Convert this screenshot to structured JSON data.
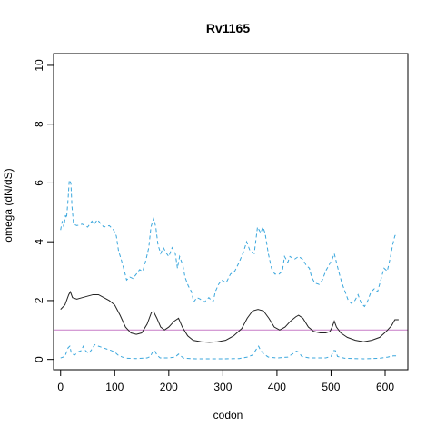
{
  "chart_data": {
    "type": "line",
    "title": "Rv1165",
    "xlabel": "codon",
    "ylabel": "omega (dN/dS)",
    "xlim": [
      -13,
      642
    ],
    "ylim": [
      -0.35,
      10.4
    ],
    "xticks": [
      0,
      100,
      200,
      300,
      400,
      500,
      600
    ],
    "yticks": [
      0,
      2,
      4,
      6,
      8,
      10
    ],
    "grid": false,
    "reference_line": {
      "y": 1,
      "color": "#c77cc7"
    },
    "series": [
      {
        "role": "mean",
        "style": "solid",
        "color": "#222222",
        "points": [
          [
            0,
            1.7
          ],
          [
            8,
            1.85
          ],
          [
            15,
            2.2
          ],
          [
            18,
            2.3
          ],
          [
            22,
            2.1
          ],
          [
            30,
            2.05
          ],
          [
            40,
            2.1
          ],
          [
            50,
            2.15
          ],
          [
            60,
            2.2
          ],
          [
            70,
            2.2
          ],
          [
            80,
            2.1
          ],
          [
            90,
            2.0
          ],
          [
            100,
            1.85
          ],
          [
            110,
            1.5
          ],
          [
            120,
            1.1
          ],
          [
            130,
            0.9
          ],
          [
            140,
            0.85
          ],
          [
            150,
            0.9
          ],
          [
            160,
            1.2
          ],
          [
            168,
            1.6
          ],
          [
            172,
            1.62
          ],
          [
            178,
            1.4
          ],
          [
            185,
            1.1
          ],
          [
            192,
            1.0
          ],
          [
            200,
            1.1
          ],
          [
            210,
            1.3
          ],
          [
            218,
            1.4
          ],
          [
            225,
            1.1
          ],
          [
            235,
            0.8
          ],
          [
            245,
            0.65
          ],
          [
            260,
            0.6
          ],
          [
            275,
            0.58
          ],
          [
            290,
            0.6
          ],
          [
            305,
            0.65
          ],
          [
            320,
            0.8
          ],
          [
            335,
            1.05
          ],
          [
            345,
            1.4
          ],
          [
            355,
            1.65
          ],
          [
            365,
            1.7
          ],
          [
            375,
            1.65
          ],
          [
            385,
            1.4
          ],
          [
            395,
            1.1
          ],
          [
            405,
            1.0
          ],
          [
            415,
            1.1
          ],
          [
            425,
            1.3
          ],
          [
            435,
            1.45
          ],
          [
            440,
            1.5
          ],
          [
            448,
            1.4
          ],
          [
            458,
            1.1
          ],
          [
            468,
            0.95
          ],
          [
            480,
            0.9
          ],
          [
            490,
            0.9
          ],
          [
            498,
            0.95
          ],
          [
            502,
            1.1
          ],
          [
            506,
            1.3
          ],
          [
            510,
            1.1
          ],
          [
            518,
            0.9
          ],
          [
            530,
            0.75
          ],
          [
            545,
            0.65
          ],
          [
            560,
            0.6
          ],
          [
            575,
            0.65
          ],
          [
            590,
            0.75
          ],
          [
            602,
            0.95
          ],
          [
            612,
            1.15
          ],
          [
            618,
            1.35
          ],
          [
            625,
            1.35
          ]
        ]
      },
      {
        "role": "upper",
        "style": "dashed",
        "color": "#3ba7dd",
        "points": [
          [
            0,
            4.4
          ],
          [
            3,
            4.7
          ],
          [
            6,
            4.5
          ],
          [
            9,
            4.9
          ],
          [
            11,
            4.8
          ],
          [
            14,
            5.5
          ],
          [
            16,
            6.1
          ],
          [
            19,
            6.0
          ],
          [
            21,
            5.2
          ],
          [
            24,
            4.6
          ],
          [
            30,
            4.55
          ],
          [
            40,
            4.6
          ],
          [
            50,
            4.5
          ],
          [
            58,
            4.7
          ],
          [
            62,
            4.6
          ],
          [
            68,
            4.75
          ],
          [
            75,
            4.6
          ],
          [
            80,
            4.5
          ],
          [
            90,
            4.55
          ],
          [
            98,
            4.4
          ],
          [
            103,
            4.2
          ],
          [
            107,
            3.7
          ],
          [
            112,
            3.4
          ],
          [
            118,
            3.0
          ],
          [
            122,
            2.7
          ],
          [
            128,
            2.8
          ],
          [
            134,
            2.75
          ],
          [
            140,
            2.9
          ],
          [
            146,
            3.05
          ],
          [
            152,
            3.0
          ],
          [
            158,
            3.4
          ],
          [
            163,
            3.8
          ],
          [
            167,
            4.5
          ],
          [
            172,
            4.8
          ],
          [
            176,
            4.5
          ],
          [
            180,
            3.9
          ],
          [
            185,
            3.6
          ],
          [
            190,
            3.8
          ],
          [
            196,
            3.6
          ],
          [
            200,
            3.5
          ],
          [
            206,
            3.8
          ],
          [
            212,
            3.6
          ],
          [
            216,
            3.1
          ],
          [
            220,
            3.5
          ],
          [
            226,
            3.2
          ],
          [
            230,
            2.8
          ],
          [
            236,
            2.5
          ],
          [
            242,
            2.3
          ],
          [
            246,
            1.95
          ],
          [
            252,
            2.1
          ],
          [
            258,
            2.05
          ],
          [
            266,
            1.95
          ],
          [
            274,
            2.1
          ],
          [
            282,
            1.95
          ],
          [
            286,
            2.3
          ],
          [
            292,
            2.55
          ],
          [
            298,
            2.7
          ],
          [
            306,
            2.6
          ],
          [
            314,
            2.9
          ],
          [
            322,
            3.0
          ],
          [
            330,
            3.3
          ],
          [
            338,
            3.65
          ],
          [
            344,
            4.0
          ],
          [
            350,
            3.7
          ],
          [
            358,
            3.6
          ],
          [
            364,
            4.5
          ],
          [
            370,
            4.3
          ],
          [
            374,
            4.5
          ],
          [
            378,
            4.3
          ],
          [
            384,
            3.6
          ],
          [
            390,
            3.1
          ],
          [
            396,
            2.9
          ],
          [
            404,
            2.9
          ],
          [
            410,
            3.0
          ],
          [
            414,
            3.5
          ],
          [
            420,
            3.3
          ],
          [
            424,
            3.5
          ],
          [
            432,
            3.4
          ],
          [
            440,
            3.5
          ],
          [
            448,
            3.4
          ],
          [
            454,
            3.2
          ],
          [
            460,
            3.1
          ],
          [
            464,
            2.8
          ],
          [
            470,
            2.6
          ],
          [
            478,
            2.55
          ],
          [
            484,
            2.7
          ],
          [
            490,
            3.0
          ],
          [
            496,
            3.2
          ],
          [
            502,
            3.4
          ],
          [
            506,
            3.6
          ],
          [
            510,
            3.3
          ],
          [
            514,
            3.0
          ],
          [
            520,
            2.6
          ],
          [
            526,
            2.3
          ],
          [
            532,
            2.0
          ],
          [
            538,
            1.9
          ],
          [
            544,
            2.0
          ],
          [
            550,
            2.2
          ],
          [
            556,
            1.9
          ],
          [
            562,
            1.8
          ],
          [
            568,
            2.0
          ],
          [
            574,
            2.3
          ],
          [
            580,
            2.4
          ],
          [
            586,
            2.3
          ],
          [
            592,
            2.7
          ],
          [
            598,
            3.1
          ],
          [
            604,
            3.0
          ],
          [
            610,
            3.5
          ],
          [
            614,
            3.9
          ],
          [
            618,
            4.2
          ],
          [
            622,
            4.3
          ],
          [
            625,
            4.3
          ]
        ]
      },
      {
        "role": "lower",
        "style": "dashed",
        "color": "#3ba7dd",
        "points": [
          [
            0,
            0.05
          ],
          [
            8,
            0.1
          ],
          [
            14,
            0.4
          ],
          [
            17,
            0.45
          ],
          [
            20,
            0.2
          ],
          [
            26,
            0.15
          ],
          [
            32,
            0.25
          ],
          [
            38,
            0.3
          ],
          [
            42,
            0.45
          ],
          [
            46,
            0.3
          ],
          [
            52,
            0.2
          ],
          [
            58,
            0.35
          ],
          [
            63,
            0.5
          ],
          [
            70,
            0.45
          ],
          [
            78,
            0.4
          ],
          [
            86,
            0.35
          ],
          [
            94,
            0.3
          ],
          [
            100,
            0.25
          ],
          [
            106,
            0.15
          ],
          [
            114,
            0.08
          ],
          [
            122,
            0.04
          ],
          [
            140,
            0.03
          ],
          [
            160,
            0.05
          ],
          [
            166,
            0.1
          ],
          [
            170,
            0.25
          ],
          [
            174,
            0.3
          ],
          [
            178,
            0.15
          ],
          [
            184,
            0.05
          ],
          [
            198,
            0.05
          ],
          [
            212,
            0.08
          ],
          [
            218,
            0.18
          ],
          [
            222,
            0.12
          ],
          [
            228,
            0.04
          ],
          [
            250,
            0.02
          ],
          [
            300,
            0.02
          ],
          [
            330,
            0.03
          ],
          [
            345,
            0.08
          ],
          [
            355,
            0.15
          ],
          [
            362,
            0.35
          ],
          [
            366,
            0.45
          ],
          [
            370,
            0.3
          ],
          [
            376,
            0.18
          ],
          [
            384,
            0.08
          ],
          [
            400,
            0.05
          ],
          [
            420,
            0.08
          ],
          [
            430,
            0.2
          ],
          [
            436,
            0.28
          ],
          [
            440,
            0.25
          ],
          [
            446,
            0.1
          ],
          [
            460,
            0.05
          ],
          [
            490,
            0.05
          ],
          [
            500,
            0.1
          ],
          [
            505,
            0.3
          ],
          [
            508,
            0.3
          ],
          [
            512,
            0.1
          ],
          [
            525,
            0.04
          ],
          [
            560,
            0.02
          ],
          [
            590,
            0.04
          ],
          [
            605,
            0.08
          ],
          [
            615,
            0.12
          ],
          [
            625,
            0.12
          ]
        ]
      }
    ]
  }
}
